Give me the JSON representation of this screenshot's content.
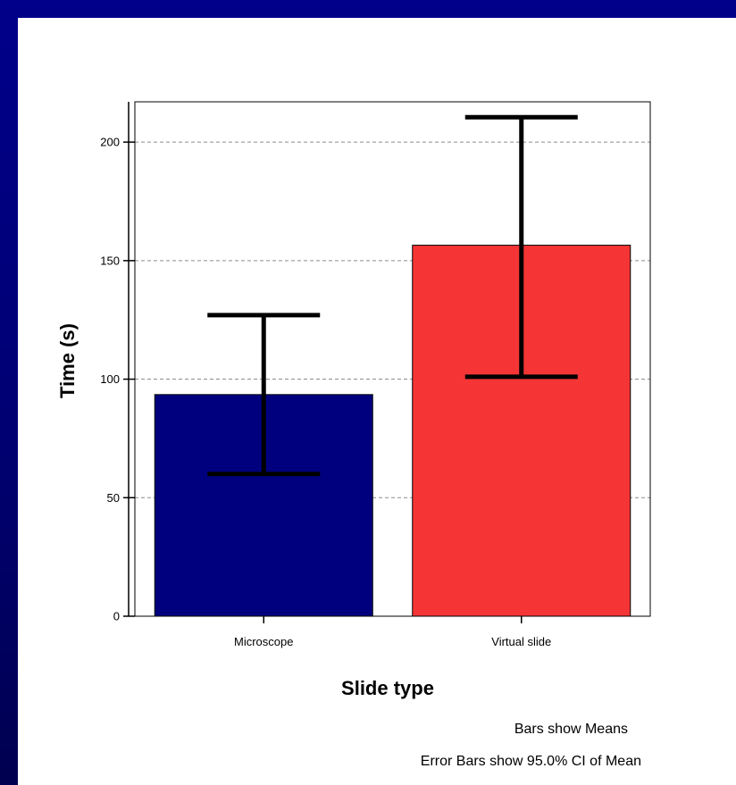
{
  "chart_data": {
    "type": "bar",
    "categories": [
      "Microscope",
      "Virtual slide"
    ],
    "values": [
      93.5,
      156.5
    ],
    "error_bars": {
      "lower": [
        60,
        101
      ],
      "upper": [
        127,
        210.5
      ]
    },
    "colors": [
      "#00007f",
      "#f53535"
    ],
    "xlabel": "Slide type",
    "ylabel": "Time (s)",
    "ylim": [
      0,
      217
    ],
    "yticks": [
      0,
      50,
      100,
      150,
      200
    ],
    "grid": "horizontal dashed at y ticks",
    "notes": [
      "Bars show Means",
      "Error Bars show 95.0% CI of Mean"
    ]
  },
  "slide": {
    "background_color": "#000080"
  }
}
